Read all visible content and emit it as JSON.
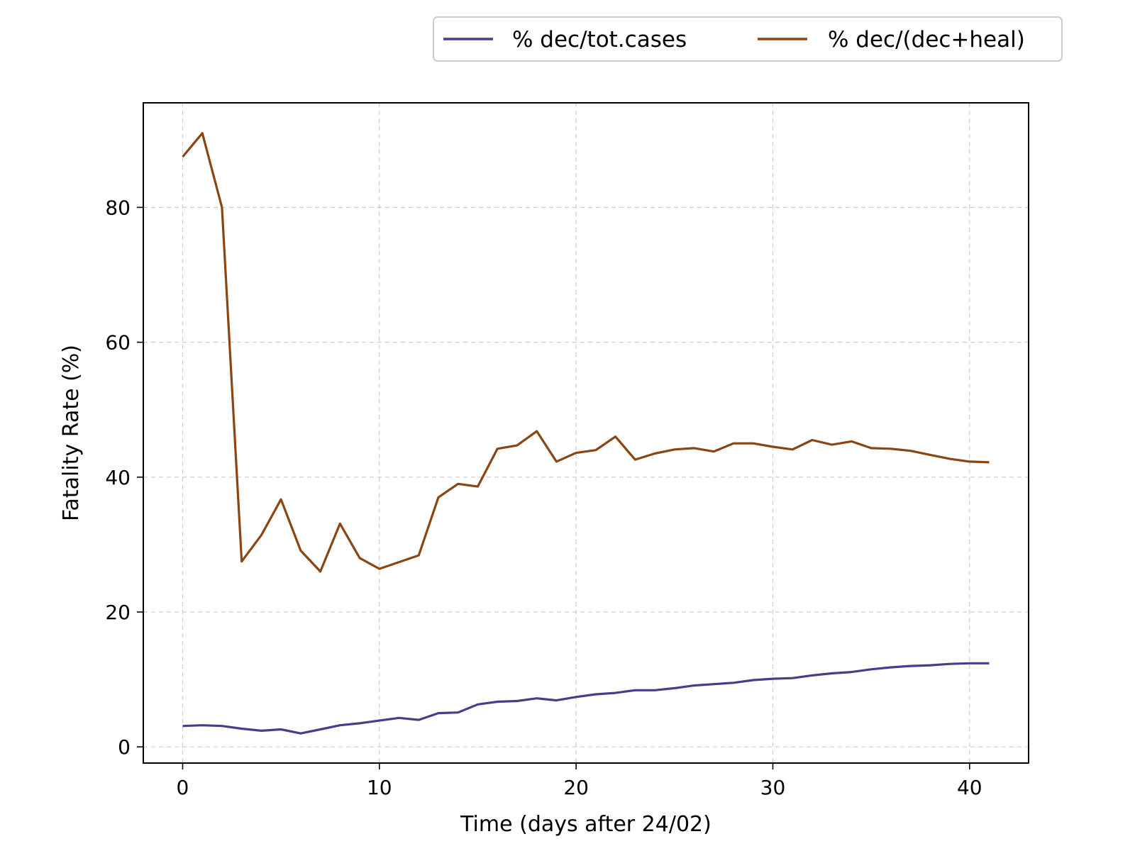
{
  "chart_data": {
    "type": "line",
    "title": "",
    "xlabel": "Time (days after 24/02)",
    "ylabel": "Fatality Rate (%)",
    "xlim": [
      -2,
      43
    ],
    "ylim": [
      -2.4,
      95.5
    ],
    "xticks": [
      0,
      10,
      20,
      30,
      40
    ],
    "yticks": [
      0,
      20,
      40,
      60,
      80
    ],
    "grid": true,
    "legend": "top-right, outside plot",
    "x": [
      0,
      1,
      2,
      3,
      4,
      5,
      6,
      7,
      8,
      9,
      10,
      11,
      12,
      13,
      14,
      15,
      16,
      17,
      18,
      19,
      20,
      21,
      22,
      23,
      24,
      25,
      26,
      27,
      28,
      29,
      30,
      31,
      32,
      33,
      34,
      35,
      36,
      37,
      38,
      39,
      40,
      41
    ],
    "series": [
      {
        "name": "% dec/tot.cases",
        "color": "#483d8b",
        "values": [
          3.1,
          3.2,
          3.1,
          2.7,
          2.4,
          2.6,
          2.0,
          2.6,
          3.2,
          3.5,
          3.9,
          4.3,
          4.0,
          5.0,
          5.1,
          6.3,
          6.7,
          6.8,
          7.2,
          6.9,
          7.4,
          7.8,
          8.0,
          8.4,
          8.4,
          8.7,
          9.1,
          9.3,
          9.5,
          9.9,
          10.1,
          10.2,
          10.6,
          10.9,
          11.1,
          11.5,
          11.8,
          12.0,
          12.1,
          12.3,
          12.4,
          12.4
        ]
      },
      {
        "name": "% dec/(dec+heal)",
        "color": "#8b4513",
        "values": [
          87.5,
          91.0,
          80.0,
          27.5,
          31.4,
          36.7,
          29.1,
          26.0,
          33.1,
          28.0,
          26.4,
          27.4,
          28.4,
          37.0,
          39.0,
          38.6,
          44.2,
          44.7,
          46.8,
          42.3,
          43.6,
          44.0,
          46.0,
          42.6,
          43.5,
          44.1,
          44.3,
          43.8,
          45.0,
          45.0,
          44.5,
          44.1,
          45.5,
          44.8,
          45.3,
          44.3,
          44.2,
          43.9,
          43.3,
          42.7,
          42.3,
          42.2
        ]
      }
    ]
  }
}
